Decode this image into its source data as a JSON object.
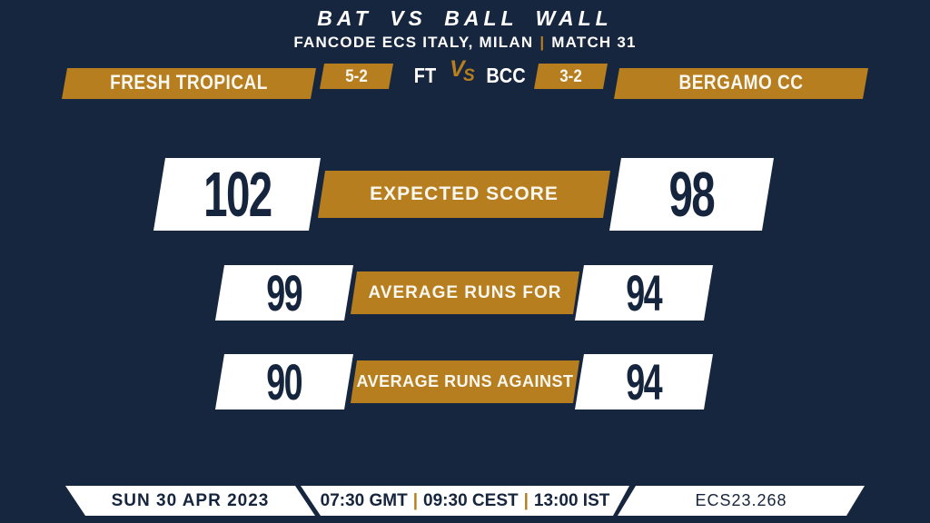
{
  "colors": {
    "bg": "#17263F",
    "gold": "#B67E1E",
    "navy": "#16253E",
    "white": "#FFFFFF"
  },
  "header": {
    "title": "BAT VS BALL WALL",
    "subtitle_left": "FANCODE ECS ITALY, MILAN",
    "separator": "|",
    "subtitle_right": "MATCH 31"
  },
  "scoreboard": {
    "home": {
      "name": "FRESH TROPICAL",
      "abbr": "FT",
      "score": "5-2"
    },
    "away": {
      "name": "BERGAMO CC",
      "abbr": "BCC",
      "score": "3-2"
    },
    "vs": {
      "v": "V",
      "s": "S"
    }
  },
  "stats": [
    {
      "label": "EXPECTED SCORE",
      "home": "102",
      "away": "98"
    },
    {
      "label": "AVERAGE RUNS FOR",
      "home": "99",
      "away": "94"
    },
    {
      "label": "AVERAGE RUNS AGAINST",
      "home": "90",
      "away": "94"
    }
  ],
  "footer": {
    "date": "SUN 30 APR 2023",
    "times": [
      "07:30 GMT",
      "09:30 CEST",
      "13:00 IST"
    ],
    "separator": "|",
    "match_code": "ECS23.268"
  },
  "chart_data": {
    "type": "table",
    "title": "BAT VS BALL WALL — FANCODE ECS ITALY, MILAN | MATCH 31",
    "columns": [
      "Stat",
      "Fresh Tropical (FT)",
      "Bergamo CC (BCC)"
    ],
    "rows": [
      [
        "Expected Score",
        102,
        98
      ],
      [
        "Average Runs For",
        99,
        94
      ],
      [
        "Average Runs Against",
        90,
        94
      ]
    ],
    "series_record": {
      "Fresh Tropical": "5-2",
      "Bergamo CC": "3-2"
    }
  }
}
